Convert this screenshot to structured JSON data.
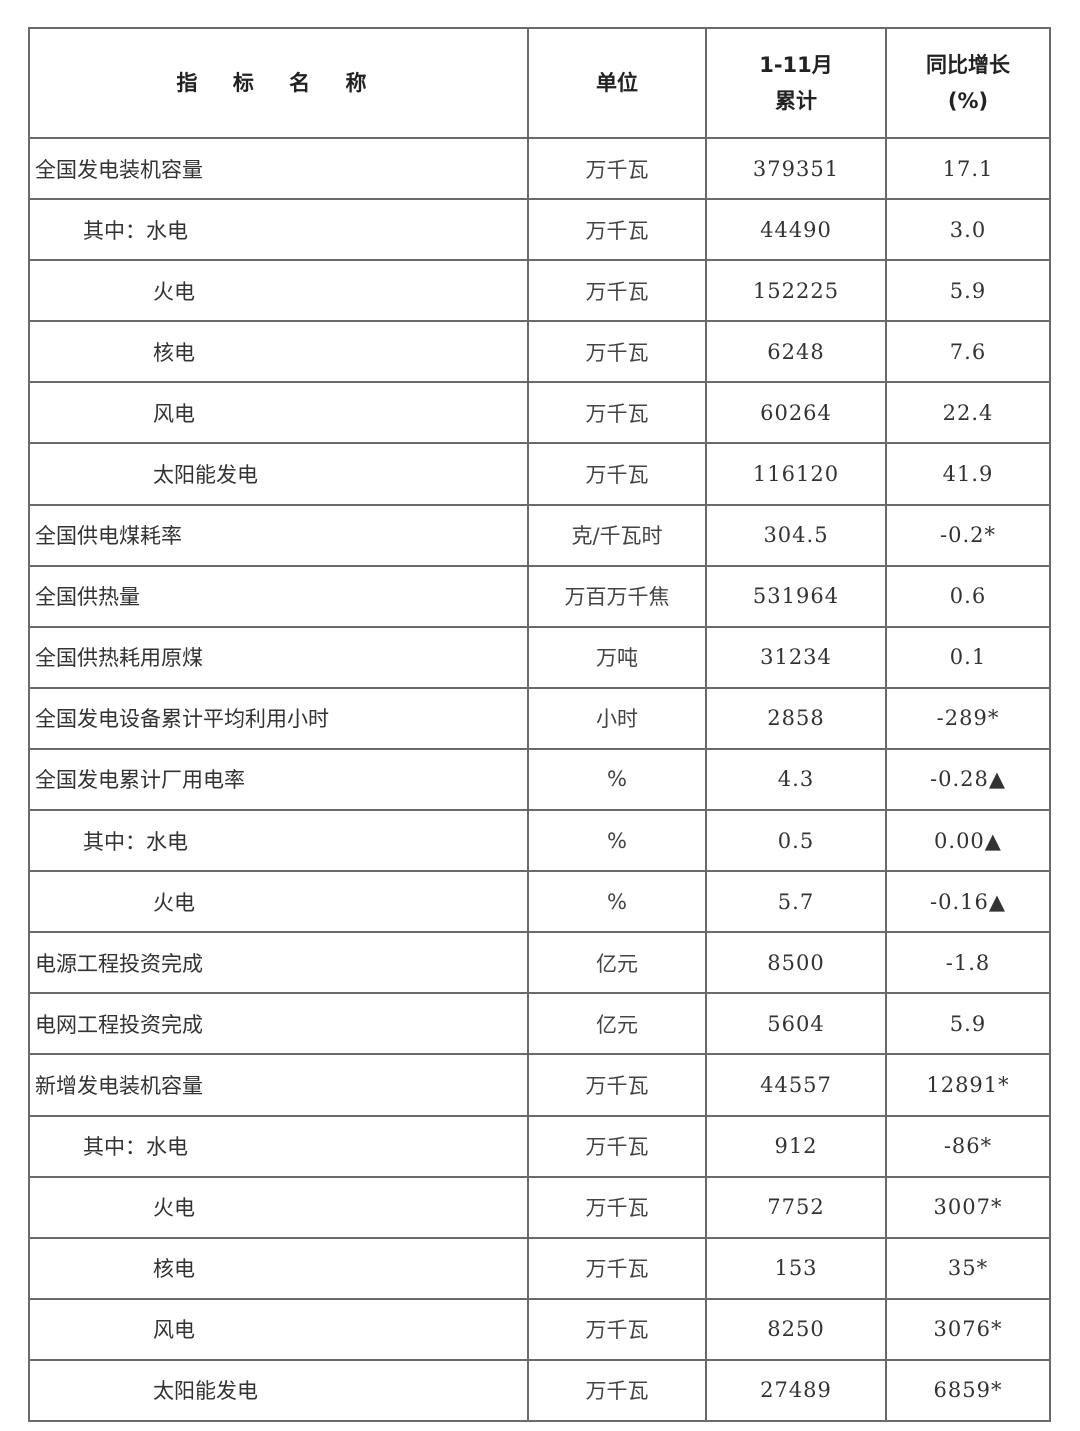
{
  "header": {
    "name": "指 标 名 称",
    "unit": "单位",
    "cumulative_line1": "1-11月",
    "cumulative_line2": "累计",
    "growth_line1": "同比增长",
    "growth_line2": "(%)"
  },
  "rows": [
    {
      "name": "全国发电装机容量",
      "level": 0,
      "unit": "万千瓦",
      "value": "379351",
      "growth": "17.1"
    },
    {
      "name": "其中：水电",
      "level": 1,
      "unit": "万千瓦",
      "value": "44490",
      "growth": "3.0"
    },
    {
      "name": "火电",
      "level": 2,
      "unit": "万千瓦",
      "value": "152225",
      "growth": "5.9"
    },
    {
      "name": "核电",
      "level": 2,
      "unit": "万千瓦",
      "value": "6248",
      "growth": "7.6"
    },
    {
      "name": "风电",
      "level": 2,
      "unit": "万千瓦",
      "value": "60264",
      "growth": "22.4"
    },
    {
      "name": "太阳能发电",
      "level": 2,
      "unit": "万千瓦",
      "value": "116120",
      "growth": "41.9"
    },
    {
      "name": "全国供电煤耗率",
      "level": 0,
      "unit": "克/千瓦时",
      "value": "304.5",
      "growth": "-0.2*"
    },
    {
      "name": "全国供热量",
      "level": 0,
      "unit": "万百万千焦",
      "value": "531964",
      "growth": "0.6"
    },
    {
      "name": "全国供热耗用原煤",
      "level": 0,
      "unit": "万吨",
      "value": "31234",
      "growth": "0.1"
    },
    {
      "name": "全国发电设备累计平均利用小时",
      "level": 0,
      "unit": "小时",
      "value": "2858",
      "growth": "-289*"
    },
    {
      "name": "全国发电累计厂用电率",
      "level": 0,
      "unit": "%",
      "value": "4.3",
      "growth": "-0.28▲"
    },
    {
      "name": "其中：水电",
      "level": 1,
      "unit": "%",
      "value": "0.5",
      "growth": "0.00▲"
    },
    {
      "name": "火电",
      "level": 2,
      "unit": "%",
      "value": "5.7",
      "growth": "-0.16▲"
    },
    {
      "name": "电源工程投资完成",
      "level": 0,
      "unit": "亿元",
      "value": "8500",
      "growth": "-1.8"
    },
    {
      "name": "电网工程投资完成",
      "level": 0,
      "unit": "亿元",
      "value": "5604",
      "growth": "5.9"
    },
    {
      "name": "新增发电装机容量",
      "level": 0,
      "unit": "万千瓦",
      "value": "44557",
      "growth": "12891*"
    },
    {
      "name": "其中：水电",
      "level": 1,
      "unit": "万千瓦",
      "value": "912",
      "growth": "-86*"
    },
    {
      "name": "火电",
      "level": 2,
      "unit": "万千瓦",
      "value": "7752",
      "growth": "3007*"
    },
    {
      "name": "核电",
      "level": 2,
      "unit": "万千瓦",
      "value": "153",
      "growth": "35*"
    },
    {
      "name": "风电",
      "level": 2,
      "unit": "万千瓦",
      "value": "8250",
      "growth": "3076*"
    },
    {
      "name": "太阳能发电",
      "level": 2,
      "unit": "万千瓦",
      "value": "27489",
      "growth": "6859*"
    }
  ]
}
